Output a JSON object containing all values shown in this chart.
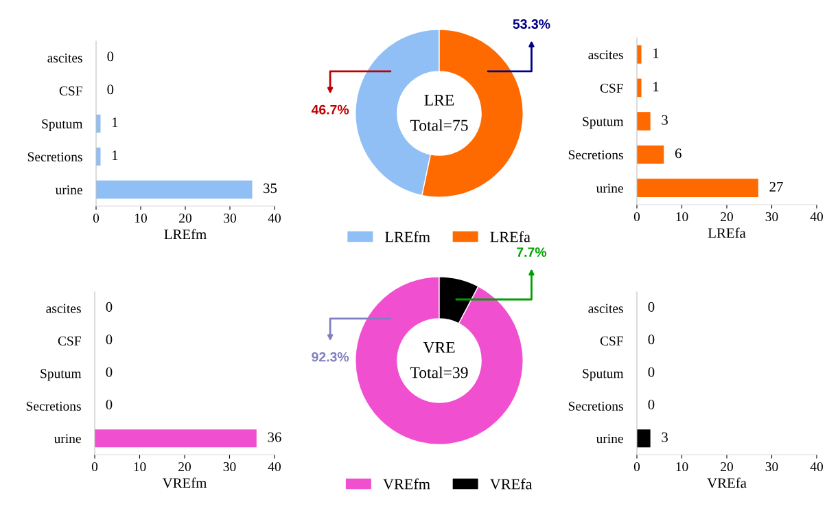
{
  "chart_data": [
    {
      "type": "bar",
      "orientation": "horizontal",
      "categories": [
        "ascites",
        "CSF",
        "Sputum",
        "Secretions",
        "urine"
      ],
      "values": [
        0,
        0,
        1,
        1,
        35
      ],
      "color": "#8fbff5",
      "xlim": [
        0,
        40
      ],
      "xticks": [
        0,
        10,
        20,
        30,
        40
      ],
      "xlabel": "LREfm",
      "data_labels": true,
      "grid": false
    },
    {
      "type": "donut",
      "categories": [
        "LREfm",
        "LREfa"
      ],
      "values": [
        46.7,
        53.3
      ],
      "colors": [
        "#8fbff5",
        "#ff6a00"
      ],
      "value_labels": [
        "46.7%",
        "53.3%"
      ],
      "annotations": [
        "LRE",
        "Total=75"
      ],
      "legend": "bottom"
    },
    {
      "type": "bar",
      "orientation": "horizontal",
      "categories": [
        "ascites",
        "CSF",
        "Sputum",
        "Secretions",
        "urine"
      ],
      "values": [
        1,
        1,
        3,
        6,
        27
      ],
      "color": "#ff6a00",
      "xlim": [
        0,
        40
      ],
      "xticks": [
        0,
        10,
        20,
        30,
        40
      ],
      "xlabel": "LREfa",
      "data_labels": true,
      "grid": false
    },
    {
      "type": "bar",
      "orientation": "horizontal",
      "categories": [
        "ascites",
        "CSF",
        "Sputum",
        "Secretions",
        "urine"
      ],
      "values": [
        0,
        0,
        0,
        0,
        36
      ],
      "color": "#f050d0",
      "xlim": [
        0,
        40
      ],
      "xticks": [
        0,
        10,
        20,
        30,
        40
      ],
      "xlabel": "VREfm",
      "data_labels": true,
      "grid": false
    },
    {
      "type": "donut",
      "categories": [
        "VREfm",
        "VREfa"
      ],
      "values": [
        92.3,
        7.7
      ],
      "colors": [
        "#f050d0",
        "#000000"
      ],
      "value_labels": [
        "92.3%",
        "7.7%"
      ],
      "annotations": [
        "VRE",
        "Total=39"
      ],
      "legend": "bottom"
    },
    {
      "type": "bar",
      "orientation": "horizontal",
      "categories": [
        "ascites",
        "CSF",
        "Sputum",
        "Secretions",
        "urine"
      ],
      "values": [
        0,
        0,
        0,
        0,
        3
      ],
      "color": "#000000",
      "xlim": [
        0,
        40
      ],
      "xticks": [
        0,
        10,
        20,
        30,
        40
      ],
      "xlabel": "VREfa",
      "data_labels": true,
      "grid": false
    }
  ]
}
